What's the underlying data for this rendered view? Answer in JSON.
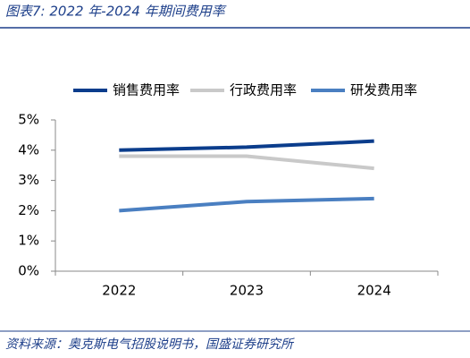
{
  "chart_data": {
    "type": "line",
    "title": "图表7:  2022 年-2024 年期间费用率",
    "source": "资料来源：奥克斯电气招股说明书，国盛证券研究所",
    "categories": [
      "2022",
      "2023",
      "2024"
    ],
    "series": [
      {
        "name": "销售费用率",
        "color": "#0b3d8c",
        "values": [
          4.0,
          4.1,
          4.3
        ]
      },
      {
        "name": "行政费用率",
        "color": "#c9c9c9",
        "values": [
          3.8,
          3.8,
          3.4
        ]
      },
      {
        "name": "研发费用率",
        "color": "#4a7fc1",
        "values": [
          2.0,
          2.3,
          2.4
        ]
      }
    ],
    "ylim": [
      0,
      5
    ],
    "yticks": [
      {
        "value": 0,
        "label": "0%"
      },
      {
        "value": 1,
        "label": "1%"
      },
      {
        "value": 2,
        "label": "2%"
      },
      {
        "value": 3,
        "label": "3%"
      },
      {
        "value": 4,
        "label": "4%"
      },
      {
        "value": 5,
        "label": "5%"
      }
    ],
    "legend": "top"
  }
}
